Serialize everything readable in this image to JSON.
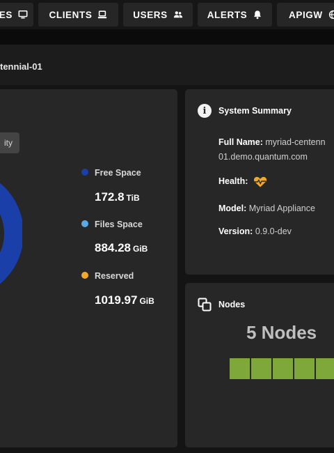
{
  "nav": {
    "items": [
      {
        "label": "ES",
        "icon": "monitor-icon"
      },
      {
        "label": "CLIENTS",
        "icon": "laptop-icon"
      },
      {
        "label": "USERS",
        "icon": "users-icon"
      },
      {
        "label": "ALERTS",
        "icon": "bell-icon"
      },
      {
        "label": "APIGW",
        "icon": "globe-icon"
      }
    ]
  },
  "page": {
    "title": "tennial-01"
  },
  "capacity": {
    "tab_label": "ity",
    "chart_data": {
      "type": "pie",
      "categories": [
        "Free Space",
        "Files Space",
        "Reserved"
      ],
      "values": [
        172.8,
        884.28,
        1019.97
      ],
      "units": [
        "TiB",
        "GiB",
        "GiB"
      ]
    },
    "legend": [
      {
        "label": "Free Space",
        "value": "172.8",
        "unit": "TiB",
        "color": "#1a3fa8"
      },
      {
        "label": "Files Space",
        "value": "884.28",
        "unit": "GiB",
        "color": "#5aa9e6"
      },
      {
        "label": "Reserved",
        "value": "1019.97",
        "unit": "GiB",
        "color": "#f0a92a"
      }
    ],
    "ring_color": "#1a3fa8"
  },
  "system_summary": {
    "title": "System Summary",
    "full_name_label": "Full Name:",
    "full_name_line1": "myriad-centenn",
    "full_name_line2": "01.demo.quantum.com",
    "health_label": "Health:",
    "health_icon": "heartbeat-icon",
    "health_color": "#f0a92a",
    "model_label": "Model:",
    "model_value": "Myriad Appliance",
    "version_label": "Version:",
    "version_value": "0.9.0-dev"
  },
  "nodes": {
    "title": "Nodes",
    "count_label": "5 Nodes",
    "node_color": "#7ea83a",
    "items": [
      {
        "status": "ok"
      },
      {
        "status": "ok"
      },
      {
        "status": "ok"
      },
      {
        "status": "ok"
      },
      {
        "status": "ok"
      }
    ]
  }
}
